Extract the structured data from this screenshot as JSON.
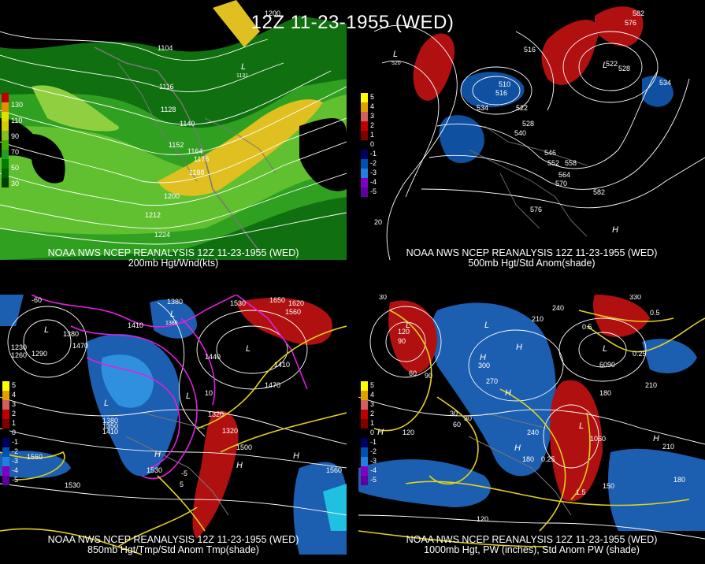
{
  "title": "12Z 11-23-1955 (WED)",
  "panels": [
    {
      "line1": "NOAA NWS NCEP REANALYSIS 12Z 11-23-1955 (WED)",
      "line2": "200mb Hgt/Wnd(kts)",
      "legend": [
        "130",
        "110",
        "90",
        "70",
        "50",
        "30"
      ],
      "legend_colors": [
        "#c00000",
        "#e09000",
        "#d0d000",
        "#40b000",
        "#20a020",
        "#008000"
      ],
      "contour_labels": [
        "1200",
        "1104",
        "1116",
        "1128",
        "1140",
        "1152",
        "1164",
        "1176",
        "1188",
        "1200",
        "1212",
        "1224",
        "1131"
      ],
      "extra_labels": [
        "L"
      ]
    },
    {
      "line1": "NOAA NWS NCEP REANALYSIS 12Z 11-23-1955 (WED)",
      "line2": "500mb Hgt/Std Anom(shade)",
      "legend": [
        "5",
        "4",
        "3",
        "2",
        "1",
        "0",
        "-1",
        "-2",
        "-3",
        "-4",
        "-5"
      ],
      "legend_colors": [
        "#ffff00",
        "#e0a000",
        "#d06060",
        "#c00000",
        "#800000",
        "#000000",
        "#000060",
        "#0050b0",
        "#2080e0",
        "#8000c0",
        "#6000a0"
      ],
      "contour_labels": [
        "582",
        "576",
        "516",
        "510",
        "516",
        "534",
        "522",
        "528",
        "540",
        "546",
        "552",
        "558",
        "564",
        "570",
        "582",
        "576",
        "534",
        "528",
        "522",
        "520",
        "20"
      ],
      "extra_labels": [
        "L",
        "L",
        "H"
      ]
    },
    {
      "line1": "NOAA NWS NCEP REANALYSIS 12Z 11-23-1955 (WED)",
      "line2": "850mb Hgt/Tmp/Std Anom Tmp(shade)",
      "legend": [
        "5",
        "4",
        "3",
        "2",
        "1",
        "0",
        "-1",
        "-2",
        "-3",
        "-4",
        "-5"
      ],
      "legend_colors": [
        "#ffff00",
        "#e0a000",
        "#d06060",
        "#c00000",
        "#800000",
        "#000000",
        "#000060",
        "#0050b0",
        "#2080e0",
        "#8000c0",
        "#6000a0"
      ],
      "contour_labels": [
        "1650",
        "1620",
        "1560",
        "1530",
        "1380",
        "1410",
        "1470",
        "1380",
        "1440",
        "1230",
        "1260",
        "1290",
        "1350",
        "1320",
        "1410",
        "1380",
        "1560",
        "1530",
        "1500",
        "1470",
        "1560",
        "1530",
        "1410",
        "-60",
        "-5",
        "5",
        "10",
        "1320",
        "1380",
        "1352"
      ],
      "extra_labels": [
        "L",
        "L",
        "L",
        "L",
        "H",
        "H",
        "L",
        "H"
      ]
    },
    {
      "line1": "NOAA NWS NCEP REANALYSIS 12Z 11-23-1955 (WED)",
      "line2": "1000mb Hgt, PW (inches), Std Anom PW (shade)",
      "legend": [
        "5",
        "4",
        "3",
        "2",
        "1",
        "0",
        "-1",
        "-2",
        "-3",
        "-4",
        "-5"
      ],
      "legend_colors": [
        "#ffff00",
        "#e0a000",
        "#d06060",
        "#c00000",
        "#800000",
        "#000000",
        "#000060",
        "#0050b0",
        "#2080e0",
        "#8000c0",
        "#6000a0"
      ],
      "contour_labels": [
        "30",
        "330",
        "240",
        "210",
        "120",
        "90",
        "60",
        "30",
        "300",
        "270",
        "210",
        "180",
        "240",
        "150",
        "120",
        "180",
        "60",
        "90",
        "0.5",
        "0.25",
        "0.5",
        "1.5",
        "0.25",
        "1060",
        "120",
        "6090",
        "180",
        "210",
        "30"
      ],
      "extra_labels": [
        "L",
        "H",
        "H",
        "L",
        "H",
        "L",
        "H",
        "H",
        "L",
        "H"
      ]
    }
  ]
}
